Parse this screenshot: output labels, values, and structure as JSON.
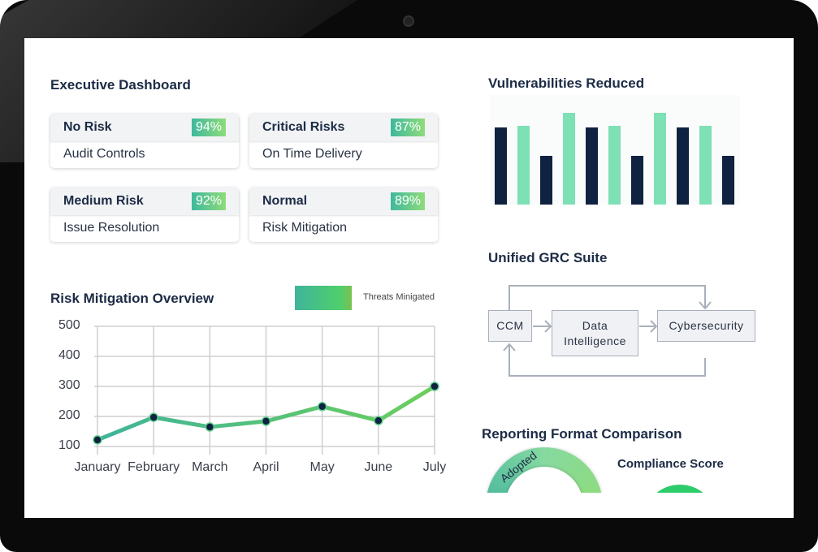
{
  "dashboard": {
    "title": "Executive Dashboard",
    "cards": [
      {
        "title": "No Risk",
        "percent": "94%",
        "subtitle": "Audit Controls"
      },
      {
        "title": "Critical Risks",
        "percent": "87%",
        "subtitle": "On Time Delivery"
      },
      {
        "title": "Medium Risk",
        "percent": "92%",
        "subtitle": "Issue Resolution"
      },
      {
        "title": "Normal",
        "percent": "89%",
        "subtitle": "Risk Mitigation"
      }
    ]
  },
  "chart_data": [
    {
      "type": "line",
      "title": "Risk Mitigation Overview",
      "legend": "Threats Minigated",
      "legend_position": "top-right",
      "categories": [
        "January",
        "February",
        "March",
        "April",
        "May",
        "June",
        "July"
      ],
      "values": [
        122,
        197,
        165,
        184,
        233,
        186,
        300
      ],
      "yticks": [
        "500",
        "400",
        "300",
        "200",
        "100"
      ],
      "ylim": [
        100,
        500
      ],
      "grid": true,
      "line_color": [
        "#3fb49a",
        "#6ccf5a"
      ],
      "marker_color": "#0f2240"
    },
    {
      "type": "bar",
      "title": "Vulnerabilities Reduced",
      "values": [
        95,
        97,
        60,
        113,
        95,
        97,
        60,
        113,
        95,
        97,
        60
      ],
      "colors": [
        "#0f2240",
        "#7ee0b5",
        "#0f2240",
        "#7ee0b5",
        "#0f2240",
        "#7ee0b5",
        "#0f2240",
        "#7ee0b5",
        "#0f2240",
        "#7ee0b5",
        "#0f2240"
      ]
    }
  ],
  "grc": {
    "title": "Unified GRC Suite",
    "nodes": [
      "CCM",
      "Data Intelligence",
      "Cybersecurity"
    ]
  },
  "reporting": {
    "title": "Reporting Format Comparison",
    "ring_label": "Adopted",
    "compliance_title": "Compliance Score"
  }
}
